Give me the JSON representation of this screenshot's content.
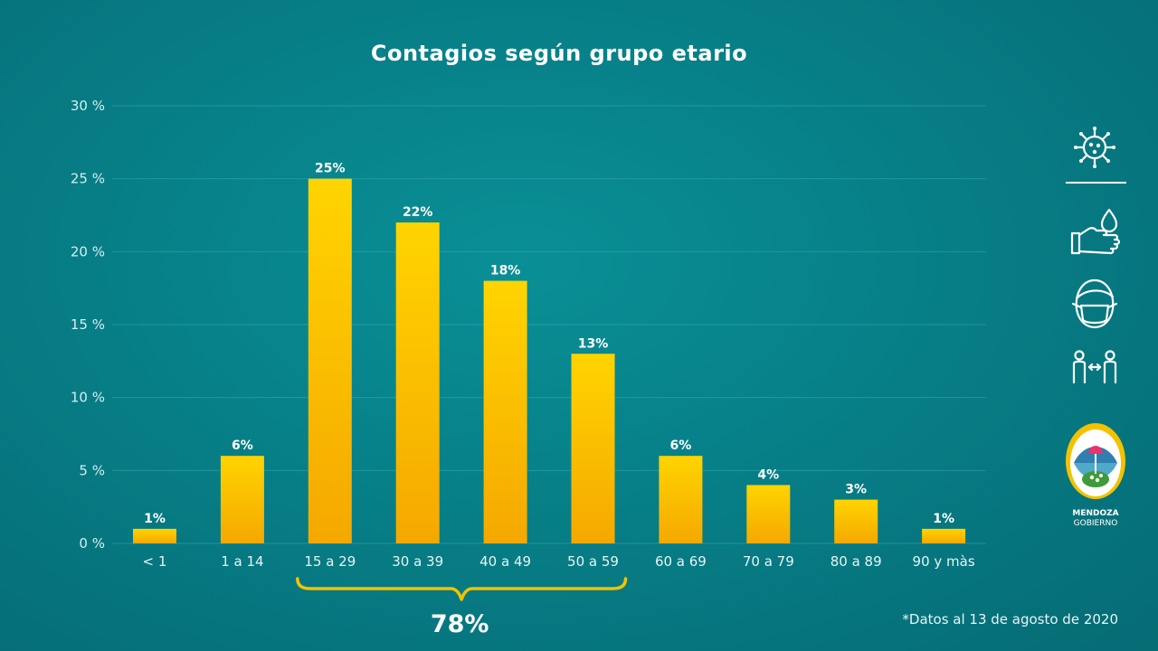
{
  "chart_data": {
    "type": "bar",
    "title": "Contagios según grupo etario",
    "categories": [
      "< 1",
      "1 a 14",
      "15 a 29",
      "30 a 39",
      "40 a 49",
      "50 a 59",
      "60 a 69",
      "70 a 79",
      "80 a 89",
      "90 y màs"
    ],
    "values": [
      1,
      6,
      25,
      22,
      18,
      13,
      6,
      4,
      3,
      1
    ],
    "value_labels": [
      "1%",
      "6%",
      "25%",
      "22%",
      "18%",
      "13%",
      "6%",
      "4%",
      "3%",
      "1%"
    ],
    "ylim": [
      0,
      30
    ],
    "yticks": [
      0,
      5,
      10,
      15,
      20,
      25,
      30
    ],
    "ytick_labels": [
      "0 %",
      "5 %",
      "10 %",
      "15 %",
      "20 %",
      "25 %",
      "30 %"
    ],
    "grid": true,
    "bar_color_top": "#ffd400",
    "bar_color_bottom": "#f5a800",
    "bracket": {
      "from": "15 a 29",
      "to": "50 a 59",
      "label": "78%",
      "color": "#f2c200"
    }
  },
  "footnote": "*Datos al 13 de agosto de 2020",
  "sidebar": {
    "icons": [
      "virus-icon",
      "hand-wash-icon",
      "face-mask-icon",
      "social-distance-icon"
    ],
    "logo": {
      "line1": "MENDOZA",
      "line2": "GOBIERNO"
    }
  }
}
